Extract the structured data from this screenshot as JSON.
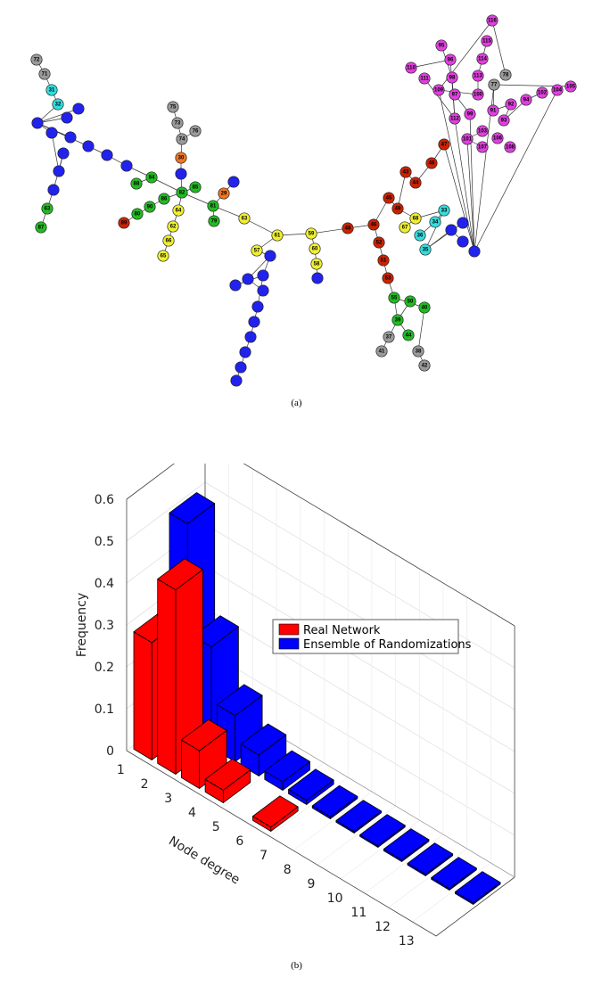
{
  "figure_a": {
    "caption": "(a)",
    "nodes": [
      {
        "id": "72",
        "c": "grey"
      },
      {
        "id": "71",
        "c": "grey"
      },
      {
        "id": "31",
        "c": "cyan"
      },
      {
        "id": "32",
        "c": "cyan"
      },
      {
        "id": "",
        "c": "blue"
      },
      {
        "id": "",
        "c": "blue"
      },
      {
        "id": "",
        "c": "blue"
      },
      {
        "id": "",
        "c": "blue"
      },
      {
        "id": "",
        "c": "blue"
      },
      {
        "id": "",
        "c": "blue"
      },
      {
        "id": "",
        "c": "blue"
      },
      {
        "id": "",
        "c": "blue"
      },
      {
        "id": "",
        "c": "blue"
      },
      {
        "id": "",
        "c": "blue"
      },
      {
        "id": "",
        "c": "blue"
      },
      {
        "id": "63",
        "c": "green"
      },
      {
        "id": "87",
        "c": "green"
      },
      {
        "id": "84",
        "c": "green"
      },
      {
        "id": "88",
        "c": "green"
      },
      {
        "id": "85",
        "c": "green"
      },
      {
        "id": "90",
        "c": "green"
      },
      {
        "id": "86",
        "c": "green"
      },
      {
        "id": "82",
        "c": "green"
      },
      {
        "id": "80",
        "c": "green"
      },
      {
        "id": "81",
        "c": "green"
      },
      {
        "id": "79",
        "c": "green"
      },
      {
        "id": "89",
        "c": "red"
      },
      {
        "id": "75",
        "c": "grey"
      },
      {
        "id": "73",
        "c": "grey"
      },
      {
        "id": "74",
        "c": "grey"
      },
      {
        "id": "76",
        "c": "grey"
      },
      {
        "id": "30",
        "c": "orange"
      },
      {
        "id": "29",
        "c": "orange"
      },
      {
        "id": "",
        "c": "blue"
      },
      {
        "id": "",
        "c": "blue"
      },
      {
        "id": "64",
        "c": "yellow"
      },
      {
        "id": "62",
        "c": "yellow"
      },
      {
        "id": "66",
        "c": "yellow"
      },
      {
        "id": "65",
        "c": "yellow"
      },
      {
        "id": "63",
        "c": "yellow"
      },
      {
        "id": "61",
        "c": "yellow"
      },
      {
        "id": "59",
        "c": "yellow"
      },
      {
        "id": "60",
        "c": "yellow"
      },
      {
        "id": "58",
        "c": "yellow"
      },
      {
        "id": "",
        "c": "blue"
      },
      {
        "id": "57",
        "c": "yellow"
      },
      {
        "id": "",
        "c": "blue"
      },
      {
        "id": "",
        "c": "blue"
      },
      {
        "id": "",
        "c": "blue"
      },
      {
        "id": "",
        "c": "blue"
      },
      {
        "id": "",
        "c": "blue"
      },
      {
        "id": "",
        "c": "blue"
      },
      {
        "id": "",
        "c": "blue"
      },
      {
        "id": "",
        "c": "blue"
      },
      {
        "id": "",
        "c": "blue"
      },
      {
        "id": "",
        "c": "blue"
      },
      {
        "id": "",
        "c": "blue"
      },
      {
        "id": "48",
        "c": "red"
      },
      {
        "id": "46",
        "c": "red"
      },
      {
        "id": "52",
        "c": "red"
      },
      {
        "id": "51",
        "c": "red"
      },
      {
        "id": "53",
        "c": "red"
      },
      {
        "id": "55",
        "c": "green"
      },
      {
        "id": "39",
        "c": "green"
      },
      {
        "id": "50",
        "c": "green"
      },
      {
        "id": "37",
        "c": "grey"
      },
      {
        "id": "41",
        "c": "grey"
      },
      {
        "id": "40",
        "c": "green"
      },
      {
        "id": "38",
        "c": "grey"
      },
      {
        "id": "42",
        "c": "grey"
      },
      {
        "id": "44",
        "c": "green"
      },
      {
        "id": "45",
        "c": "red"
      },
      {
        "id": "49",
        "c": "red"
      },
      {
        "id": "43",
        "c": "red"
      },
      {
        "id": "44",
        "c": "red"
      },
      {
        "id": "46",
        "c": "red"
      },
      {
        "id": "47",
        "c": "red"
      },
      {
        "id": "68",
        "c": "yellow"
      },
      {
        "id": "67",
        "c": "yellow"
      },
      {
        "id": "33",
        "c": "cyan"
      },
      {
        "id": "34",
        "c": "cyan"
      },
      {
        "id": "36",
        "c": "cyan"
      },
      {
        "id": "35",
        "c": "cyan"
      },
      {
        "id": "",
        "c": "blue"
      },
      {
        "id": "",
        "c": "blue"
      },
      {
        "id": "",
        "c": "blue"
      },
      {
        "id": "",
        "c": "blue"
      },
      {
        "id": "99",
        "c": "magenta"
      },
      {
        "id": "112",
        "c": "magenta"
      },
      {
        "id": "97",
        "c": "magenta"
      },
      {
        "id": "98",
        "c": "magenta"
      },
      {
        "id": "96",
        "c": "magenta"
      },
      {
        "id": "95",
        "c": "magenta"
      },
      {
        "id": "110",
        "c": "magenta"
      },
      {
        "id": "111",
        "c": "magenta"
      },
      {
        "id": "109",
        "c": "magenta"
      },
      {
        "id": "100",
        "c": "magenta"
      },
      {
        "id": "113",
        "c": "magenta"
      },
      {
        "id": "114",
        "c": "magenta"
      },
      {
        "id": "115",
        "c": "magenta"
      },
      {
        "id": "116",
        "c": "magenta"
      },
      {
        "id": "78",
        "c": "grey"
      },
      {
        "id": "77",
        "c": "grey"
      },
      {
        "id": "91",
        "c": "magenta"
      },
      {
        "id": "92",
        "c": "magenta"
      },
      {
        "id": "93",
        "c": "magenta"
      },
      {
        "id": "94",
        "c": "magenta"
      },
      {
        "id": "102",
        "c": "magenta"
      },
      {
        "id": "104",
        "c": "magenta"
      },
      {
        "id": "105",
        "c": "magenta"
      },
      {
        "id": "101",
        "c": "magenta"
      },
      {
        "id": "103",
        "c": "magenta"
      },
      {
        "id": "107",
        "c": "magenta"
      },
      {
        "id": "106",
        "c": "magenta"
      },
      {
        "id": "108",
        "c": "magenta"
      }
    ],
    "colors": {
      "blue": "#2222ee",
      "green": "#22bb22",
      "grey": "#9a9a9a",
      "cyan": "#33dddd",
      "yellow": "#f0f030",
      "red": "#cc2200",
      "orange": "#ee7722",
      "magenta": "#e040e0"
    }
  },
  "chart_data": {
    "type": "bar",
    "categories": [
      "1",
      "2",
      "3",
      "4",
      "5",
      "6",
      "7",
      "8",
      "9",
      "10",
      "11",
      "12",
      "13"
    ],
    "series": [
      {
        "name": "Real Network",
        "color": "#ff0000",
        "values": [
          0.28,
          0.44,
          0.09,
          0.03,
          0,
          0.01,
          0,
          0,
          0,
          0,
          0,
          0,
          0
        ]
      },
      {
        "name": "Ensemble of Randomizations",
        "color": "#0000ff",
        "values": [
          0.5,
          0.24,
          0.11,
          0.05,
          0.02,
          0.01,
          0.005,
          0,
          0,
          0,
          0,
          0,
          0
        ]
      }
    ],
    "xlabel": "Node degree",
    "ylabel": "Frequency",
    "ytick_labels": [
      "0",
      "0.1",
      "0.2",
      "0.3",
      "0.4",
      "0.5",
      "0.6"
    ],
    "ylim": [
      0,
      0.6
    ],
    "grid": true,
    "legend_position": "right"
  },
  "figure_b": {
    "caption": "(b)"
  }
}
